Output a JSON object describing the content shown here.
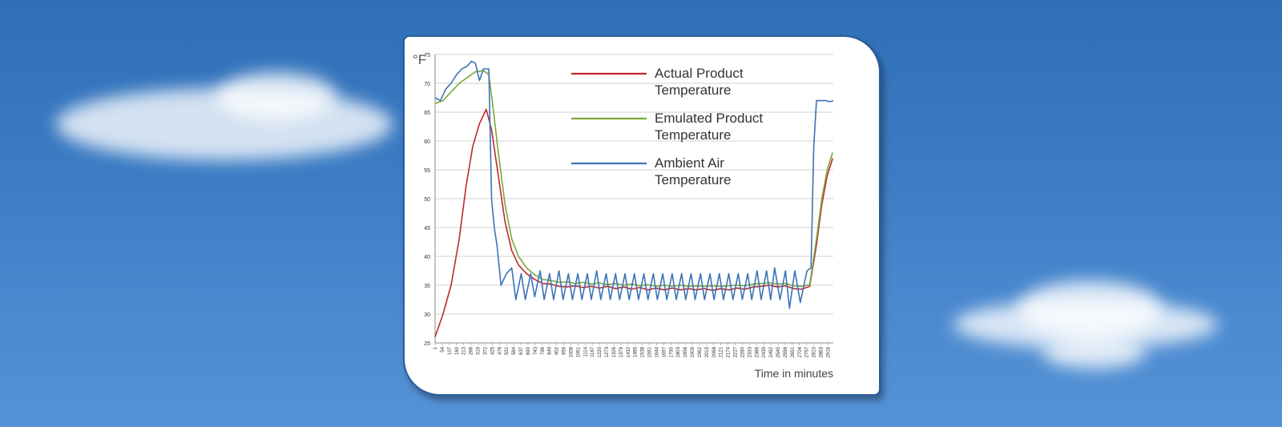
{
  "chart_data": {
    "type": "line",
    "unit_label": "°F",
    "xlabel": "Time in minutes",
    "ylabel": "",
    "ylim": [
      25,
      75
    ],
    "yticks": [
      25,
      30,
      35,
      40,
      45,
      50,
      55,
      60,
      65,
      70,
      75
    ],
    "xlim": [
      1,
      2955
    ],
    "xticks": [
      1,
      54,
      107,
      160,
      213,
      266,
      319,
      372,
      425,
      478,
      531,
      584,
      637,
      690,
      743,
      796,
      849,
      902,
      955,
      1008,
      1061,
      1114,
      1167,
      1220,
      1273,
      1326,
      1379,
      1432,
      1485,
      1538,
      1591,
      1644,
      1697,
      1750,
      1803,
      1856,
      1909,
      1962,
      2015,
      2068,
      2121,
      2174,
      2227,
      2280,
      2333,
      2386,
      2439,
      2492,
      2545,
      2598,
      2651,
      2704,
      2757,
      2810,
      2863,
      2916
    ],
    "grid": true,
    "legend_position": "top-right",
    "series": [
      {
        "name": "Actual Product Temperature",
        "color": "#c0282d",
        "points": [
          [
            1,
            26
          ],
          [
            60,
            30
          ],
          [
            120,
            35
          ],
          [
            180,
            43
          ],
          [
            230,
            52
          ],
          [
            280,
            59
          ],
          [
            330,
            63
          ],
          [
            380,
            65.5
          ],
          [
            420,
            62
          ],
          [
            470,
            54
          ],
          [
            520,
            46
          ],
          [
            570,
            41
          ],
          [
            620,
            38.5
          ],
          [
            680,
            37
          ],
          [
            740,
            36
          ],
          [
            800,
            35.3
          ],
          [
            860,
            35.2
          ],
          [
            920,
            34.8
          ],
          [
            980,
            34.7
          ],
          [
            1040,
            34.9
          ],
          [
            1100,
            34.6
          ],
          [
            1160,
            34.8
          ],
          [
            1220,
            34.5
          ],
          [
            1280,
            34.8
          ],
          [
            1340,
            34.4
          ],
          [
            1400,
            34.7
          ],
          [
            1460,
            34.3
          ],
          [
            1520,
            34.6
          ],
          [
            1580,
            34.2
          ],
          [
            1640,
            34.5
          ],
          [
            1700,
            34.2
          ],
          [
            1760,
            34.5
          ],
          [
            1820,
            34.2
          ],
          [
            1880,
            34.4
          ],
          [
            1940,
            34.2
          ],
          [
            2000,
            34.4
          ],
          [
            2060,
            34.1
          ],
          [
            2120,
            34.4
          ],
          [
            2180,
            34.2
          ],
          [
            2240,
            34.5
          ],
          [
            2300,
            34.3
          ],
          [
            2360,
            34.7
          ],
          [
            2420,
            34.8
          ],
          [
            2480,
            35
          ],
          [
            2540,
            34.7
          ],
          [
            2600,
            34.9
          ],
          [
            2660,
            34.4
          ],
          [
            2720,
            34.3
          ],
          [
            2780,
            34.8
          ],
          [
            2830,
            42
          ],
          [
            2870,
            49
          ],
          [
            2910,
            54
          ],
          [
            2950,
            57
          ]
        ]
      },
      {
        "name": "Emulated Product Temperature",
        "color": "#7aa83a",
        "points": [
          [
            1,
            66.5
          ],
          [
            60,
            67
          ],
          [
            120,
            68.5
          ],
          [
            180,
            70
          ],
          [
            240,
            71
          ],
          [
            300,
            72
          ],
          [
            360,
            72.2
          ],
          [
            400,
            71.5
          ],
          [
            430,
            66
          ],
          [
            470,
            58
          ],
          [
            520,
            49
          ],
          [
            570,
            43
          ],
          [
            620,
            40
          ],
          [
            680,
            38
          ],
          [
            740,
            36.8
          ],
          [
            800,
            36
          ],
          [
            860,
            35.8
          ],
          [
            920,
            35.5
          ],
          [
            980,
            35.6
          ],
          [
            1040,
            35.3
          ],
          [
            1100,
            35.5
          ],
          [
            1160,
            35.2
          ],
          [
            1220,
            35.4
          ],
          [
            1280,
            35.1
          ],
          [
            1340,
            35.3
          ],
          [
            1400,
            35
          ],
          [
            1460,
            35.2
          ],
          [
            1520,
            34.9
          ],
          [
            1580,
            35.1
          ],
          [
            1640,
            34.8
          ],
          [
            1700,
            35
          ],
          [
            1760,
            34.8
          ],
          [
            1820,
            35
          ],
          [
            1880,
            34.8
          ],
          [
            1940,
            34.9
          ],
          [
            2000,
            34.8
          ],
          [
            2060,
            34.9
          ],
          [
            2120,
            34.8
          ],
          [
            2180,
            34.9
          ],
          [
            2240,
            35
          ],
          [
            2300,
            34.9
          ],
          [
            2360,
            35.2
          ],
          [
            2420,
            35.3
          ],
          [
            2480,
            35.4
          ],
          [
            2540,
            35.2
          ],
          [
            2600,
            35.3
          ],
          [
            2660,
            34.9
          ],
          [
            2720,
            34.8
          ],
          [
            2780,
            35.1
          ],
          [
            2830,
            43
          ],
          [
            2870,
            50
          ],
          [
            2910,
            55
          ],
          [
            2950,
            58
          ]
        ]
      },
      {
        "name": "Ambient Air Temperature",
        "color": "#3a74b8",
        "points": [
          [
            1,
            67.5
          ],
          [
            40,
            67
          ],
          [
            80,
            69
          ],
          [
            120,
            70
          ],
          [
            160,
            71.5
          ],
          [
            200,
            72.5
          ],
          [
            240,
            73
          ],
          [
            270,
            73.8
          ],
          [
            300,
            73.5
          ],
          [
            330,
            70.5
          ],
          [
            360,
            72.5
          ],
          [
            400,
            72.5
          ],
          [
            420,
            50
          ],
          [
            440,
            45
          ],
          [
            460,
            42
          ],
          [
            490,
            35
          ],
          [
            530,
            37
          ],
          [
            570,
            38
          ],
          [
            600,
            32.5
          ],
          [
            640,
            37
          ],
          [
            670,
            32.5
          ],
          [
            710,
            37
          ],
          [
            740,
            33
          ],
          [
            780,
            37.5
          ],
          [
            810,
            32.5
          ],
          [
            850,
            37
          ],
          [
            880,
            32.5
          ],
          [
            920,
            37.5
          ],
          [
            950,
            32.5
          ],
          [
            990,
            37
          ],
          [
            1020,
            32.5
          ],
          [
            1060,
            37
          ],
          [
            1090,
            32.5
          ],
          [
            1130,
            37
          ],
          [
            1160,
            32.5
          ],
          [
            1200,
            37.5
          ],
          [
            1230,
            32.5
          ],
          [
            1270,
            37
          ],
          [
            1300,
            32.5
          ],
          [
            1340,
            37
          ],
          [
            1370,
            32.5
          ],
          [
            1410,
            37
          ],
          [
            1440,
            32.5
          ],
          [
            1480,
            37
          ],
          [
            1510,
            32.5
          ],
          [
            1550,
            37
          ],
          [
            1580,
            32.5
          ],
          [
            1620,
            37
          ],
          [
            1650,
            32.5
          ],
          [
            1690,
            37
          ],
          [
            1720,
            32.5
          ],
          [
            1760,
            37
          ],
          [
            1790,
            32.5
          ],
          [
            1830,
            37
          ],
          [
            1860,
            32.5
          ],
          [
            1900,
            37
          ],
          [
            1930,
            32.5
          ],
          [
            1970,
            37
          ],
          [
            2000,
            32.5
          ],
          [
            2040,
            37
          ],
          [
            2070,
            32.5
          ],
          [
            2110,
            37
          ],
          [
            2140,
            32.5
          ],
          [
            2180,
            37
          ],
          [
            2210,
            32.5
          ],
          [
            2250,
            37
          ],
          [
            2280,
            32.5
          ],
          [
            2320,
            37
          ],
          [
            2350,
            32.5
          ],
          [
            2390,
            37.5
          ],
          [
            2420,
            32.5
          ],
          [
            2460,
            37.5
          ],
          [
            2490,
            32.5
          ],
          [
            2520,
            38
          ],
          [
            2560,
            32.5
          ],
          [
            2600,
            37.5
          ],
          [
            2630,
            31
          ],
          [
            2670,
            37.5
          ],
          [
            2710,
            32
          ],
          [
            2760,
            37.5
          ],
          [
            2790,
            38
          ],
          [
            2810,
            59
          ],
          [
            2830,
            67
          ],
          [
            2870,
            67
          ],
          [
            2900,
            67
          ],
          [
            2930,
            66.8
          ],
          [
            2955,
            67
          ]
        ]
      }
    ]
  }
}
